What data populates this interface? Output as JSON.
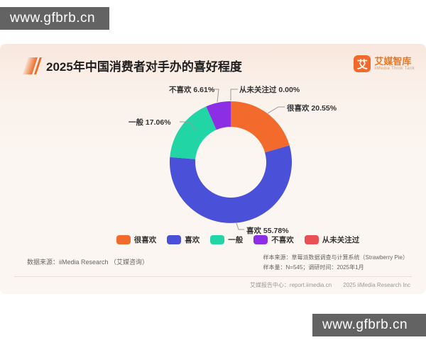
{
  "watermark": {
    "text": "www.gfbrb.cn"
  },
  "header": {
    "title": "2025年中国消费者对手办的喜好程度",
    "logo": {
      "icon_char": "艾",
      "name": "艾媒智库",
      "subtitle": "iiMedia Think Tank"
    }
  },
  "chart_data": {
    "type": "pie",
    "subtype": "donut",
    "title": "2025年中国消费者对手办的喜好程度",
    "start_angle_deg": 0,
    "direction": "clockwise-from-12-oclock",
    "legend_position": "bottom",
    "segments": [
      {
        "label": "很喜欢",
        "value": 20.55,
        "display": "很喜欢 20.55%",
        "color": "#f26b2c"
      },
      {
        "label": "喜欢",
        "value": 55.78,
        "display": "喜欢 55.78%",
        "color": "#4b50d9"
      },
      {
        "label": "一般",
        "value": 17.06,
        "display": "一般 17.06%",
        "color": "#21d5a4"
      },
      {
        "label": "不喜欢",
        "value": 6.61,
        "display": "不喜欢 6.61%",
        "color": "#8b2ee4"
      },
      {
        "label": "从未关注过",
        "value": 0.0,
        "display": "从未关注过 0.00%",
        "color": "#e94f55"
      }
    ]
  },
  "footer": {
    "data_source": "数据来源：iiMedia Research （艾媒咨询）",
    "sample_source": "样本来源：草莓派数据调查与计算系统（Strawberry Pie）",
    "sample_info": "样本量：N=545；调研时间：2025年1月",
    "report_center": "艾媒报告中心：report.iimedia.cn",
    "copyright": "2025 iiMedia Research Inc"
  }
}
